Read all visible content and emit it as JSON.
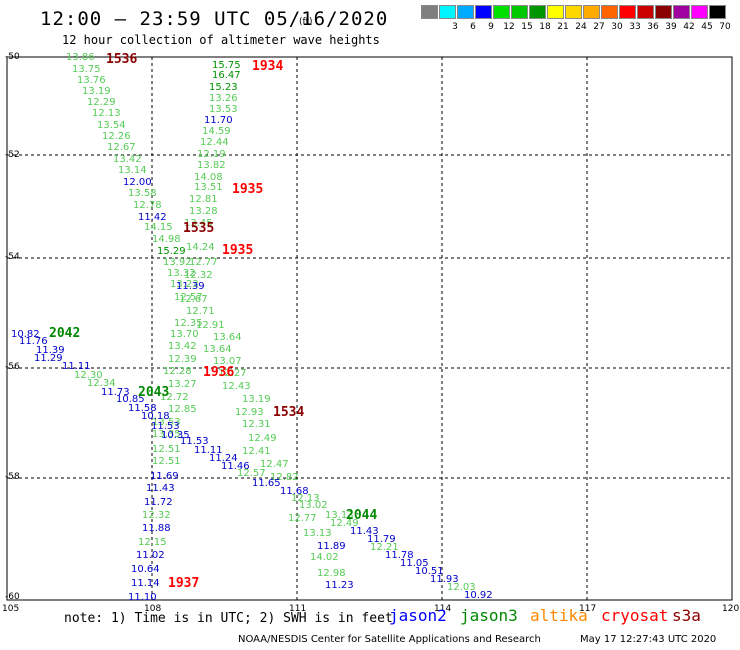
{
  "header": {
    "title": "12:00 – 23:59 UTC 05/16/2020",
    "subtitle": "12 hour collection of altimeter wave heights"
  },
  "color_scale": {
    "unit": "(ft)",
    "levels": [
      {
        "label": "",
        "color": "#7f7f7f"
      },
      {
        "label": "3",
        "color": "#00f5ff"
      },
      {
        "label": "6",
        "color": "#00aaff"
      },
      {
        "label": "9",
        "color": "#0000ff"
      },
      {
        "label": "12",
        "color": "#00e000"
      },
      {
        "label": "15",
        "color": "#00c800"
      },
      {
        "label": "18",
        "color": "#009600"
      },
      {
        "label": "21",
        "color": "#ffff00"
      },
      {
        "label": "24",
        "color": "#ffd700"
      },
      {
        "label": "27",
        "color": "#ffaa00"
      },
      {
        "label": "30",
        "color": "#ff6400"
      },
      {
        "label": "33",
        "color": "#ff0000"
      },
      {
        "label": "36",
        "color": "#c80000"
      },
      {
        "label": "39",
        "color": "#8b0000"
      },
      {
        "label": "42",
        "color": "#a000a0"
      },
      {
        "label": "45",
        "color": "#ff00ff"
      },
      {
        "label": "70",
        "color": "#000000"
      }
    ]
  },
  "axes": {
    "lat_labels": [
      "-50",
      "-52",
      "-54",
      "-56",
      "-58",
      "-60"
    ],
    "lon_labels": [
      "105",
      "108",
      "111",
      "114",
      "117",
      "120"
    ]
  },
  "colors": {
    "jason2": "#0000ff",
    "jason3": "#008800",
    "altika": "#ff8800",
    "cryosat": "#ff0000",
    "s3a": "#8b0000",
    "light_green": "#55cc55",
    "dark_green": "#009000",
    "blue": "#0000cc"
  },
  "time_labels": [
    {
      "text": "1536",
      "sat": "s3a"
    },
    {
      "text": "1934",
      "sat": "cryosat"
    },
    {
      "text": "1935",
      "sat": "cryosat"
    },
    {
      "text": "1535",
      "sat": "s3a"
    },
    {
      "text": "1935",
      "sat": "cryosat"
    },
    {
      "text": "2042",
      "sat": "jason3"
    },
    {
      "text": "1936",
      "sat": "cryosat"
    },
    {
      "text": "2043",
      "sat": "jason3"
    },
    {
      "text": "1534",
      "sat": "s3a"
    },
    {
      "text": "2044",
      "sat": "jason3"
    },
    {
      "text": "1937",
      "sat": "cryosat"
    }
  ],
  "measurements": [
    {
      "v": "13.86",
      "c": "light_green"
    },
    {
      "v": "13.75",
      "c": "light_green"
    },
    {
      "v": "13.76",
      "c": "light_green"
    },
    {
      "v": "13.19",
      "c": "light_green"
    },
    {
      "v": "12.29",
      "c": "light_green"
    },
    {
      "v": "12.13",
      "c": "light_green"
    },
    {
      "v": "13.54",
      "c": "light_green"
    },
    {
      "v": "12.26",
      "c": "light_green"
    },
    {
      "v": "12.67",
      "c": "light_green"
    },
    {
      "v": "13.42",
      "c": "light_green"
    },
    {
      "v": "13.14",
      "c": "light_green"
    },
    {
      "v": "12.00",
      "c": "blue"
    },
    {
      "v": "13.58",
      "c": "light_green"
    },
    {
      "v": "12.78",
      "c": "light_green"
    },
    {
      "v": "11.42",
      "c": "blue"
    },
    {
      "v": "14.15",
      "c": "light_green"
    },
    {
      "v": "14.98",
      "c": "light_green"
    },
    {
      "v": "15.29",
      "c": "dark_green"
    },
    {
      "v": "13.92",
      "c": "light_green"
    },
    {
      "v": "13.32",
      "c": "light_green"
    },
    {
      "v": "13.23",
      "c": "light_green"
    },
    {
      "v": "11.39",
      "c": "blue"
    },
    {
      "v": "12.57",
      "c": "light_green"
    },
    {
      "v": "12.67",
      "c": "light_green"
    },
    {
      "v": "12.71",
      "c": "light_green"
    },
    {
      "v": "12.35",
      "c": "light_green"
    },
    {
      "v": "12.91",
      "c": "light_green"
    },
    {
      "v": "13.70",
      "c": "light_green"
    },
    {
      "v": "13.64",
      "c": "light_green"
    },
    {
      "v": "13.42",
      "c": "light_green"
    },
    {
      "v": "13.64",
      "c": "light_green"
    },
    {
      "v": "12.39",
      "c": "light_green"
    },
    {
      "v": "13.07",
      "c": "light_green"
    },
    {
      "v": "12.28",
      "c": "light_green"
    },
    {
      "v": "12.27",
      "c": "light_green"
    },
    {
      "v": "13.27",
      "c": "light_green"
    },
    {
      "v": "12.43",
      "c": "light_green"
    },
    {
      "v": "12.72",
      "c": "light_green"
    },
    {
      "v": "13.19",
      "c": "light_green"
    },
    {
      "v": "12.85",
      "c": "light_green"
    },
    {
      "v": "12.93",
      "c": "light_green"
    },
    {
      "v": "13.53",
      "c": "light_green"
    },
    {
      "v": "12.31",
      "c": "light_green"
    },
    {
      "v": "13.35",
      "c": "light_green"
    },
    {
      "v": "12.49",
      "c": "light_green"
    },
    {
      "v": "12.51",
      "c": "light_green"
    },
    {
      "v": "12.41",
      "c": "light_green"
    },
    {
      "v": "12.51",
      "c": "light_green"
    },
    {
      "v": "12.47",
      "c": "light_green"
    },
    {
      "v": "12.57",
      "c": "light_green"
    },
    {
      "v": "12.82",
      "c": "light_green"
    },
    {
      "v": "15.75",
      "c": "dark_green"
    },
    {
      "v": "16.47",
      "c": "dark_green"
    },
    {
      "v": "15.23",
      "c": "dark_green"
    },
    {
      "v": "13.26",
      "c": "light_green"
    },
    {
      "v": "13.53",
      "c": "light_green"
    },
    {
      "v": "11.70",
      "c": "blue"
    },
    {
      "v": "14.59",
      "c": "light_green"
    },
    {
      "v": "12.44",
      "c": "light_green"
    },
    {
      "v": "12.19",
      "c": "light_green"
    },
    {
      "v": "13.82",
      "c": "light_green"
    },
    {
      "v": "14.08",
      "c": "light_green"
    },
    {
      "v": "13.51",
      "c": "light_green"
    },
    {
      "v": "12.81",
      "c": "light_green"
    },
    {
      "v": "13.28",
      "c": "light_green"
    },
    {
      "v": "13.45",
      "c": "light_green"
    },
    {
      "v": "14.24",
      "c": "light_green"
    },
    {
      "v": "12.77",
      "c": "light_green"
    },
    {
      "v": "12.32",
      "c": "light_green"
    },
    {
      "v": "10.82",
      "c": "blue"
    },
    {
      "v": "11.76",
      "c": "blue"
    },
    {
      "v": "11.39",
      "c": "blue"
    },
    {
      "v": "11.29",
      "c": "blue"
    },
    {
      "v": "11.11",
      "c": "blue"
    },
    {
      "v": "12.30",
      "c": "light_green"
    },
    {
      "v": "12.34",
      "c": "light_green"
    },
    {
      "v": "11.73",
      "c": "blue"
    },
    {
      "v": "10.85",
      "c": "blue"
    },
    {
      "v": "11.58",
      "c": "blue"
    },
    {
      "v": "10.18",
      "c": "blue"
    },
    {
      "v": "11.53",
      "c": "blue"
    },
    {
      "v": "10.35",
      "c": "blue"
    },
    {
      "v": "11.53",
      "c": "blue"
    },
    {
      "v": "11.11",
      "c": "blue"
    },
    {
      "v": "11.24",
      "c": "blue"
    },
    {
      "v": "11.46",
      "c": "blue"
    },
    {
      "v": "11.65",
      "c": "blue"
    },
    {
      "v": "11.68",
      "c": "blue"
    },
    {
      "v": "12.13",
      "c": "light_green"
    },
    {
      "v": "13.02",
      "c": "light_green"
    },
    {
      "v": "12.77",
      "c": "light_green"
    },
    {
      "v": "13.13",
      "c": "light_green"
    },
    {
      "v": "12.49",
      "c": "light_green"
    },
    {
      "v": "11.43",
      "c": "blue"
    },
    {
      "v": "13.13",
      "c": "light_green"
    },
    {
      "v": "11.79",
      "c": "blue"
    },
    {
      "v": "11.89",
      "c": "blue"
    },
    {
      "v": "12.21",
      "c": "light_green"
    },
    {
      "v": "11.78",
      "c": "blue"
    },
    {
      "v": "14.02",
      "c": "light_green"
    },
    {
      "v": "11.05",
      "c": "blue"
    },
    {
      "v": "12.98",
      "c": "light_green"
    },
    {
      "v": "10.51",
      "c": "blue"
    },
    {
      "v": "11.93",
      "c": "blue"
    },
    {
      "v": "11.23",
      "c": "blue"
    },
    {
      "v": "12.03",
      "c": "light_green"
    },
    {
      "v": "10.92",
      "c": "blue"
    },
    {
      "v": "11.69",
      "c": "blue"
    },
    {
      "v": "11.43",
      "c": "blue"
    },
    {
      "v": "11.72",
      "c": "blue"
    },
    {
      "v": "12.32",
      "c": "light_green"
    },
    {
      "v": "11.88",
      "c": "blue"
    },
    {
      "v": "12.15",
      "c": "light_green"
    },
    {
      "v": "11.02",
      "c": "blue"
    },
    {
      "v": "10.64",
      "c": "blue"
    },
    {
      "v": "11.14",
      "c": "blue"
    },
    {
      "v": "11.10",
      "c": "blue"
    }
  ],
  "footer": {
    "note": "note: 1) Time is in UTC; 2) SWH is in feet",
    "legend": [
      {
        "label": "jason2",
        "sat": "jason2"
      },
      {
        "label": "jason3",
        "sat": "jason3"
      },
      {
        "label": "altika",
        "sat": "altika"
      },
      {
        "label": "cryosat",
        "sat": "cryosat"
      },
      {
        "label": "s3a",
        "sat": "s3a"
      }
    ],
    "credit": "NOAA/NESDIS Center for Satellite Applications and Research",
    "timestamp": "May 17 12:27:43 UTC 2020"
  }
}
